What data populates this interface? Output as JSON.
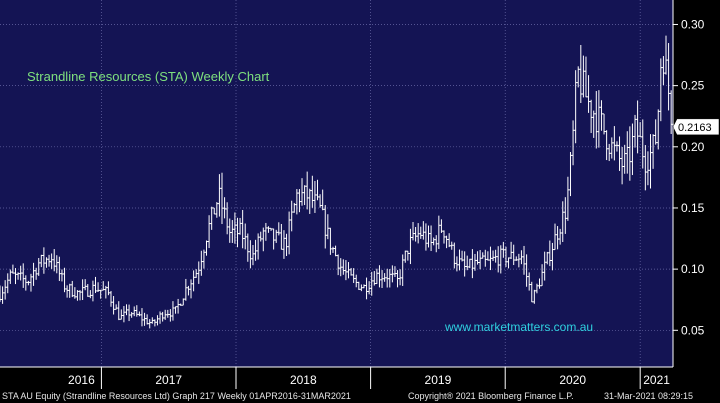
{
  "chart_data": {
    "type": "bar",
    "subtype": "weekly-high-low-close",
    "title": "Strandline Resources (STA) Weekly Chart",
    "watermark": "www.marketmatters.com.au",
    "ylim": [
      0.02,
      0.32
    ],
    "yticks": [
      0.05,
      0.1,
      0.15,
      0.2,
      0.25,
      0.3
    ],
    "ytick_labels": [
      "0.05",
      "0.10",
      "0.15",
      "0.20",
      "0.25",
      "0.30"
    ],
    "last_price_label": "0.2163",
    "last_price": 0.2163,
    "x_start": "2016-04-01",
    "x_end": "2021-03-31",
    "year_labels": [
      "2016",
      "2017",
      "2018",
      "2019",
      "2020",
      "2021"
    ],
    "year_boundaries": [
      "2017-01-01",
      "2018-01-01",
      "2019-01-01",
      "2020-01-01",
      "2021-01-01"
    ],
    "gridlines": true,
    "colors": {
      "background": "#141454",
      "bars": "#ffffff",
      "title": "#7ee07e",
      "watermark": "#2fd0e0",
      "grid": "#6a6aa8"
    },
    "keypoints": [
      [
        "2016-04-01",
        0.08
      ],
      [
        "2016-05-01",
        0.095
      ],
      [
        "2016-06-15",
        0.09
      ],
      [
        "2016-07-15",
        0.105
      ],
      [
        "2016-08-20",
        0.11
      ],
      [
        "2016-09-25",
        0.085
      ],
      [
        "2016-11-01",
        0.08
      ],
      [
        "2016-12-15",
        0.085
      ],
      [
        "2017-01-20",
        0.08
      ],
      [
        "2017-02-20",
        0.06
      ],
      [
        "2017-03-20",
        0.065
      ],
      [
        "2017-04-20",
        0.06
      ],
      [
        "2017-05-20",
        0.055
      ],
      [
        "2017-06-20",
        0.065
      ],
      [
        "2017-07-20",
        0.065
      ],
      [
        "2017-08-20",
        0.085
      ],
      [
        "2017-09-20",
        0.1
      ],
      [
        "2017-10-15",
        0.13
      ],
      [
        "2017-11-15",
        0.16
      ],
      [
        "2017-12-15",
        0.13
      ],
      [
        "2018-01-15",
        0.13
      ],
      [
        "2018-02-15",
        0.11
      ],
      [
        "2018-03-15",
        0.13
      ],
      [
        "2018-04-15",
        0.125
      ],
      [
        "2018-05-15",
        0.12
      ],
      [
        "2018-06-15",
        0.16
      ],
      [
        "2018-07-15",
        0.16
      ],
      [
        "2018-08-15",
        0.15
      ],
      [
        "2018-09-15",
        0.12
      ],
      [
        "2018-10-15",
        0.1
      ],
      [
        "2018-11-15",
        0.09
      ],
      [
        "2018-12-15",
        0.085
      ],
      [
        "2019-01-15",
        0.095
      ],
      [
        "2019-02-15",
        0.095
      ],
      [
        "2019-03-15",
        0.09
      ],
      [
        "2019-04-15",
        0.12
      ],
      [
        "2019-05-15",
        0.13
      ],
      [
        "2019-06-15",
        0.12
      ],
      [
        "2019-07-15",
        0.135
      ],
      [
        "2019-08-15",
        0.11
      ],
      [
        "2019-09-15",
        0.1
      ],
      [
        "2019-10-15",
        0.105
      ],
      [
        "2019-11-15",
        0.105
      ],
      [
        "2019-12-15",
        0.11
      ],
      [
        "2020-01-15",
        0.11
      ],
      [
        "2020-02-15",
        0.11
      ],
      [
        "2020-03-15",
        0.075
      ],
      [
        "2020-04-15",
        0.1
      ],
      [
        "2020-05-15",
        0.125
      ],
      [
        "2020-06-15",
        0.15
      ],
      [
        "2020-07-01",
        0.2
      ],
      [
        "2020-07-15",
        0.26
      ],
      [
        "2020-08-15",
        0.235
      ],
      [
        "2020-09-15",
        0.22
      ],
      [
        "2020-10-15",
        0.2
      ],
      [
        "2020-11-15",
        0.185
      ],
      [
        "2020-12-01",
        0.19
      ],
      [
        "2020-12-20",
        0.215
      ],
      [
        "2021-01-15",
        0.19
      ],
      [
        "2021-02-01",
        0.195
      ],
      [
        "2021-02-15",
        0.21
      ],
      [
        "2021-03-01",
        0.285
      ],
      [
        "2021-03-15",
        0.255
      ],
      [
        "2021-03-31",
        0.2163
      ]
    ]
  },
  "footer": {
    "left": "STA AU Equity (Strandline Resources Ltd) Graph 217  Weekly 01APR2016-31MAR2021",
    "middle": "Copyright® 2021 Bloomberg Finance L.P.",
    "right": "31-Mar-2021 08:29:15"
  }
}
